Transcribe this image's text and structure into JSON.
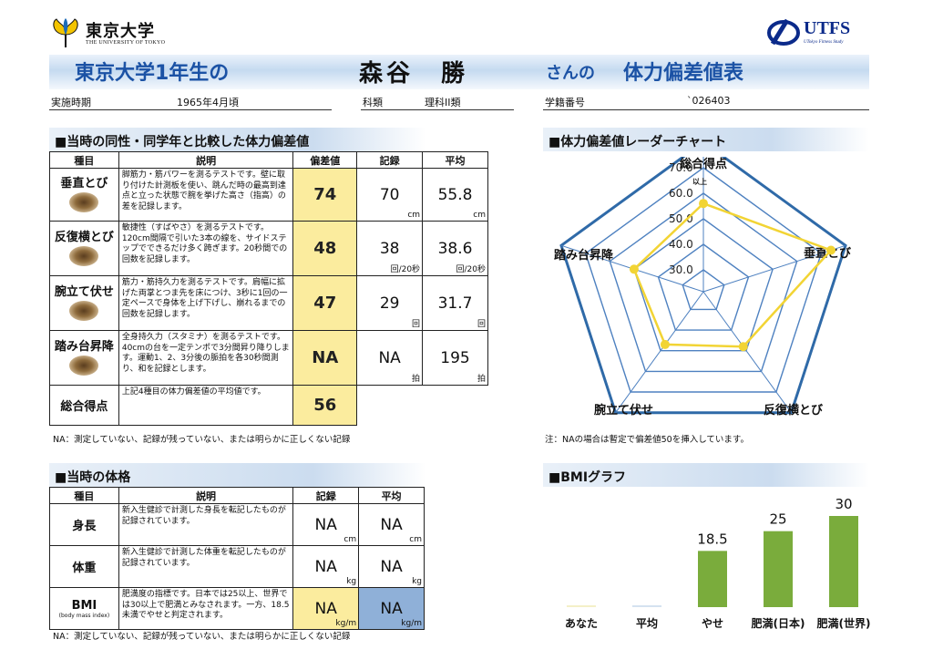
{
  "header": {
    "ut_logo_jp": "東京大学",
    "ut_logo_en": "THE UNIVERSITY OF TOKYO",
    "utfs_logo": "UTFS",
    "utfs_sub": "UTokyo Fitness Study",
    "title_prefix": "東京大学1年生の",
    "name": "森谷　勝",
    "title_san": "さんの",
    "title_suffix": "体力偏差値表"
  },
  "info": {
    "date_label": "実施時期",
    "date_value": "1965年4月頃",
    "course_label": "科類",
    "course_value": "理科II類",
    "id_label": "学籍番号",
    "id_value": "`026403"
  },
  "fitness": {
    "section_title": "■当時の同性・同学年と比較した体力偏差値",
    "headers": [
      "種目",
      "説明",
      "偏差値",
      "記録",
      "平均"
    ],
    "rows": [
      {
        "kind": "垂直とび",
        "desc": "脚筋力・筋パワーを測るテストです。壁に取り付けた計測板を使い、跳んだ時の最高到達点と立った状態で腕を挙げた高さ（指高）の差を記録します。",
        "dev": "74",
        "rec": "70",
        "avg": "55.8",
        "rec_unit": "cm",
        "avg_unit": "cm"
      },
      {
        "kind": "反復横とび",
        "desc": "敏捷性（すばやさ）を測るテストです。120cm間隔で引いた3本の線を、サイドステップでできるだけ多く跨ぎます。20秒間での回数を記録します。",
        "dev": "48",
        "rec": "38",
        "avg": "38.6",
        "rec_unit": "回/20秒",
        "avg_unit": "回/20秒"
      },
      {
        "kind": "腕立て伏せ",
        "desc": "筋力・筋持久力を測るテストです。肩幅に拡げた両掌とつま先を床につけ、3秒に1回の一定ペースで身体を上げ下げし、崩れるまでの回数を記録します。",
        "dev": "47",
        "rec": "29",
        "avg": "31.7",
        "rec_unit": "回",
        "avg_unit": "回"
      },
      {
        "kind": "踏み台昇降",
        "desc": "全身持久力（スタミナ）を測るテストです。40cmの台を一定テンポで3分間昇り降りします。運動1、2、3分後の脈拍を各30秒間測り、和を記録とします。",
        "dev": "NA",
        "rec": "NA",
        "avg": "195",
        "rec_unit": "拍",
        "avg_unit": "拍"
      }
    ],
    "total": {
      "kind": "総合得点",
      "desc": "上記4種目の体力偏差値の平均値です。",
      "dev": "56"
    },
    "note": "NA：測定していない、記録が残っていない、または明らかに正しくない記録"
  },
  "radar": {
    "section_title": "■体力偏差値レーダーチャート",
    "note": "注：NAの場合は暫定で偏差値50を挿入しています。"
  },
  "body": {
    "section_title": "■当時の体格",
    "headers": [
      "種目",
      "説明",
      "記録",
      "平均"
    ],
    "rows": [
      {
        "kind": "身長",
        "desc": "新入生健診で計測した身長を転記したものが記録されています。",
        "rec": "NA",
        "avg": "NA",
        "rec_unit": "cm",
        "avg_unit": "cm"
      },
      {
        "kind": "体重",
        "desc": "新入生健診で計測した体重を転記したものが記録されています。",
        "rec": "NA",
        "avg": "NA",
        "rec_unit": "kg",
        "avg_unit": "kg"
      },
      {
        "kind": "BMI",
        "kind_sub": "(body mass index)",
        "desc": "肥満度の指標です。日本では25以上、世界では30以上で肥満とみなされます。一方、18.5未満でやせと判定されます。",
        "rec": "NA",
        "avg": "NA",
        "rec_unit": "kg/m",
        "avg_unit": "kg/m"
      }
    ],
    "note": "NA：測定していない、記録が残っていない、または明らかに正しくない記録"
  },
  "bmi": {
    "section_title": "■BMIグラフ"
  },
  "chart_data": [
    {
      "type": "radar",
      "axes": [
        "総合得点",
        "垂直とび",
        "反復横とび",
        "腕立て伏せ",
        "踏み台昇降"
      ],
      "values": [
        56,
        74,
        48,
        47,
        50
      ],
      "rmin": 30,
      "rmax": 70,
      "ticks": [
        "30.0",
        "40.0",
        "50.0",
        "60.0",
        "70.0"
      ],
      "tick_note": "以上",
      "color": "#f2d434"
    },
    {
      "type": "bar",
      "categories": [
        "あなた",
        "平均",
        "やせ",
        "肥満(日本)",
        "肥満(世界)"
      ],
      "values": [
        null,
        null,
        18.5,
        25,
        30
      ],
      "labels": [
        "",
        "",
        "18.5",
        "25",
        "30"
      ],
      "ylim": [
        0,
        30
      ],
      "color": "#7aac3c"
    }
  ]
}
